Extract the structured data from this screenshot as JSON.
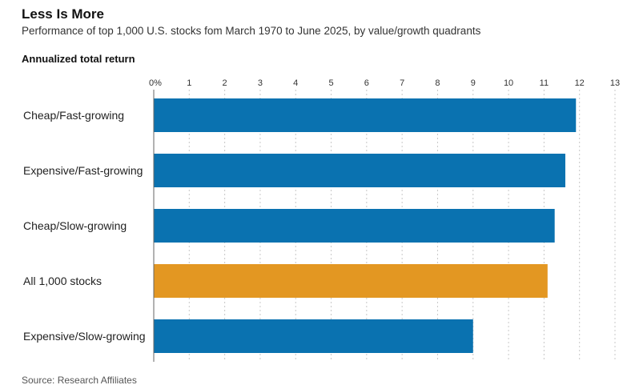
{
  "header": {
    "title": "Less Is More",
    "subtitle": "Performance of top 1,000 U.S. stocks fom March 1970 to June 2025, by value/growth quadrants",
    "axis_title": "Annualized total return"
  },
  "footer": {
    "source": "Source: Research Affiliates"
  },
  "colors": {
    "default_bar": "#0a72b0",
    "highlight_bar": "#e39722"
  },
  "chart_data": {
    "type": "bar",
    "orientation": "horizontal",
    "title": "Less Is More",
    "subtitle": "Performance of top 1,000 U.S. stocks fom March 1970 to June 2025, by value/growth quadrants",
    "xlabel": "Annualized total return",
    "ylabel": "",
    "xlim": [
      0,
      13
    ],
    "ticks": [
      0,
      1,
      2,
      3,
      4,
      5,
      6,
      7,
      8,
      9,
      10,
      11,
      12,
      13
    ],
    "tick_labels": [
      "0%",
      "1",
      "2",
      "3",
      "4",
      "5",
      "6",
      "7",
      "8",
      "9",
      "10",
      "11",
      "12",
      "13"
    ],
    "tick_position": "top",
    "grid": true,
    "categories": [
      "Cheap/Fast-growing",
      "Expensive/Fast-growing",
      "Cheap/Slow-growing",
      "All 1,000 stocks",
      "Expensive/Slow-growing"
    ],
    "values": [
      11.9,
      11.6,
      11.3,
      11.1,
      9.0
    ],
    "highlight": [
      "All 1,000 stocks"
    ],
    "source": "Source: Research Affiliates"
  }
}
